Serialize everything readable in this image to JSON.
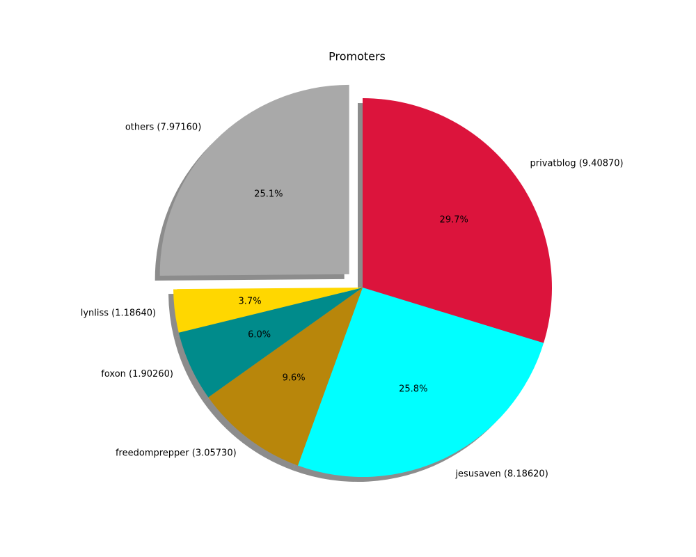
{
  "chart_data": {
    "type": "pie",
    "title": "Promoters",
    "categories": [
      "privatblog (9.40870)",
      "jesusaven (8.18620)",
      "freedomprepper (3.05730)",
      "foxon (1.90260)",
      "lynliss (1.18640)",
      "others (7.97160)"
    ],
    "values": [
      29.7,
      25.8,
      9.6,
      6.0,
      3.7,
      25.1
    ],
    "value_labels": [
      "29.7%",
      "25.8%",
      "9.6%",
      "6.0%",
      "3.7%",
      "25.1%"
    ],
    "colors": [
      "#dc143c",
      "#00ffff",
      "#b8860b",
      "#008b8b",
      "#ffd700",
      "#a9a9a9"
    ],
    "explode": [
      0,
      0,
      0,
      0,
      0,
      0.1
    ],
    "shadow": true
  }
}
